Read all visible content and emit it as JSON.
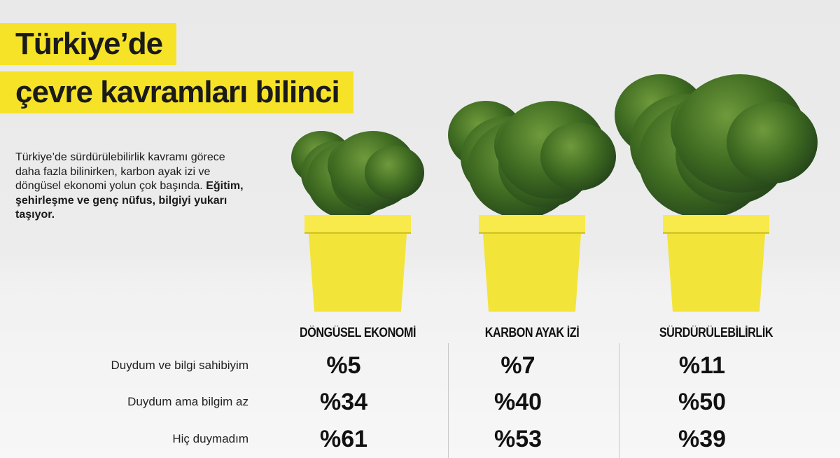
{
  "title": {
    "line1": "Türkiye’de",
    "line2": "çevre kavramları bilinci"
  },
  "intro": {
    "regular": "Türkiye’de sürdürülebilirlik kavramı görece daha fazla bilinirken, karbon ayak izi ve döngüsel ekonomi yolun çok başında. ",
    "bold": "Eğitim, şehirleşme ve genç nüfus, bilgiyi yukarı taşıyor."
  },
  "colors": {
    "accent": "#f6e327",
    "pot": "#f3e43a"
  },
  "chart_data": {
    "type": "table",
    "columns": [
      "DÖNGÜSEL EKONOMİ",
      "KARBON AYAK İZİ",
      "SÜRDÜRÜLEBİLİRLİK"
    ],
    "rows": [
      "Duydum ve bilgi sahibiyim",
      "Duydum ama bilgim az",
      "Hiç duymadım"
    ],
    "values": [
      [
        "%5",
        "%7",
        "%11"
      ],
      [
        "%34",
        "%40",
        "%50"
      ],
      [
        "%61",
        "%53",
        "%39"
      ]
    ],
    "plant_size_order": [
      "DÖNGÜSEL EKONOMİ",
      "KARBON AYAK İZİ",
      "SÜRDÜRÜLEBİLİRLİK"
    ]
  }
}
